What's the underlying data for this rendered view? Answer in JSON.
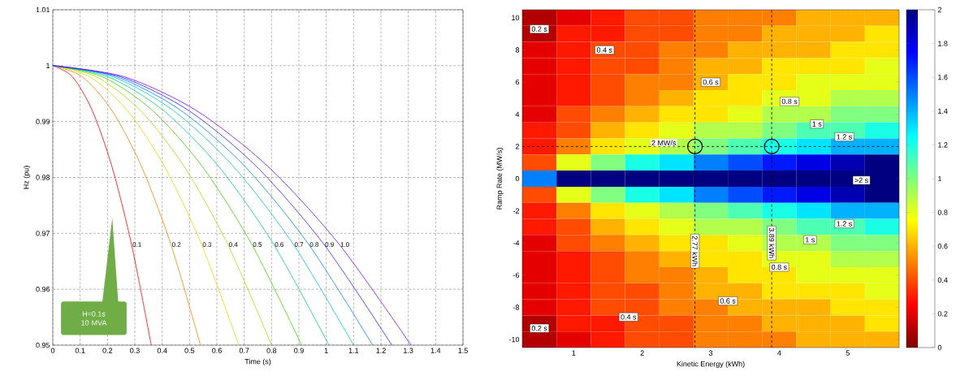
{
  "chart_data": [
    {
      "type": "line",
      "xlabel": "Time (s)",
      "ylabel": "Hz (pu)",
      "xlim": [
        0,
        1.5
      ],
      "ylim": [
        0.95,
        1.01
      ],
      "grid": true,
      "xticks": [
        0,
        0.1,
        0.2,
        0.3,
        0.4,
        0.5,
        0.6,
        0.7,
        0.8,
        0.9,
        1,
        1.1,
        1.2,
        1.3,
        1.4,
        1.5
      ],
      "yticks": [
        0.95,
        0.96,
        0.97,
        0.98,
        0.99,
        1,
        1.01
      ],
      "annotations": [
        "H=0.1s 10 MVA"
      ],
      "series": [
        {
          "name": "0.1",
          "color": "#ff0000",
          "x": [
            0,
            0.072,
            0.144,
            0.216,
            0.288,
            0.36
          ],
          "values": [
            1,
            0.998,
            0.992,
            0.982,
            0.968,
            0.95
          ]
        },
        {
          "name": "0.2",
          "color": "#ff8000",
          "x": [
            0,
            0.108,
            0.216,
            0.324,
            0.432,
            0.54
          ],
          "values": [
            1,
            0.998,
            0.992,
            0.982,
            0.968,
            0.95
          ]
        },
        {
          "name": "0.3",
          "color": "#e8d800",
          "x": [
            0,
            0.136,
            0.272,
            0.408,
            0.544,
            0.68
          ],
          "values": [
            1,
            0.998,
            0.992,
            0.982,
            0.968,
            0.95
          ]
        },
        {
          "name": "0.4",
          "color": "#a8e000",
          "x": [
            0,
            0.16,
            0.32,
            0.48,
            0.64,
            0.8
          ],
          "values": [
            1,
            0.998,
            0.992,
            0.982,
            0.968,
            0.95
          ]
        },
        {
          "name": "0.5",
          "color": "#40d000",
          "x": [
            0,
            0.182,
            0.364,
            0.546,
            0.728,
            0.91
          ],
          "values": [
            1,
            0.998,
            0.992,
            0.982,
            0.968,
            0.95
          ]
        },
        {
          "name": "0.6",
          "color": "#00d080",
          "x": [
            0,
            0.202,
            0.404,
            0.606,
            0.808,
            1.01
          ],
          "values": [
            1,
            0.998,
            0.992,
            0.982,
            0.968,
            0.95
          ]
        },
        {
          "name": "0.7",
          "color": "#00c8d0",
          "x": [
            0,
            0.22,
            0.44,
            0.66,
            0.88,
            1.1
          ],
          "values": [
            1,
            0.998,
            0.992,
            0.982,
            0.968,
            0.95
          ]
        },
        {
          "name": "0.8",
          "color": "#0080ff",
          "x": [
            0,
            0.234,
            0.468,
            0.702,
            0.936,
            1.17
          ],
          "values": [
            1,
            0.998,
            0.992,
            0.982,
            0.968,
            0.95
          ]
        },
        {
          "name": "0.9",
          "color": "#2020ff",
          "x": [
            0,
            0.248,
            0.496,
            0.744,
            0.992,
            1.24
          ],
          "values": [
            1,
            0.998,
            0.992,
            0.982,
            0.968,
            0.95
          ]
        },
        {
          "name": "1.0",
          "color": "#8000ff",
          "x": [
            0,
            0.262,
            0.524,
            0.786,
            1.048,
            1.31
          ],
          "values": [
            1,
            0.998,
            0.992,
            0.982,
            0.968,
            0.95
          ]
        }
      ]
    },
    {
      "type": "heatmap",
      "xlabel": "Kinetic Energy (kWh)",
      "ylabel": "Ramp Rate (MW/s)",
      "clim": [
        0,
        2
      ],
      "cticks": [
        0,
        0.2,
        0.4,
        0.6,
        0.8,
        1,
        1.2,
        1.4,
        1.6,
        1.8,
        2
      ],
      "categories": [
        null,
        "1",
        null,
        "2",
        null,
        "3",
        null,
        "4",
        null,
        "5",
        null
      ],
      "y_categories": [
        "10",
        null,
        "8",
        null,
        "6",
        null,
        "4",
        null,
        "2",
        null,
        "0",
        null,
        "-2",
        null,
        "-4",
        null,
        "-6",
        null,
        "-8",
        null,
        "-10"
      ],
      "cells": [
        [
          0.1,
          0.2,
          0.3,
          0.4,
          0.4,
          0.5,
          0.5,
          0.5,
          0.6,
          0.6,
          0.6
        ],
        [
          0.1,
          0.3,
          0.3,
          0.4,
          0.4,
          0.5,
          0.5,
          0.6,
          0.6,
          0.6,
          0.7
        ],
        [
          0.2,
          0.3,
          0.4,
          0.4,
          0.5,
          0.5,
          0.6,
          0.6,
          0.6,
          0.7,
          0.7
        ],
        [
          0.2,
          0.3,
          0.4,
          0.4,
          0.5,
          0.6,
          0.6,
          0.7,
          0.7,
          0.7,
          0.8
        ],
        [
          0.2,
          0.3,
          0.4,
          0.5,
          0.5,
          0.6,
          0.7,
          0.7,
          0.8,
          0.8,
          0.8
        ],
        [
          0.2,
          0.3,
          0.4,
          0.5,
          0.6,
          0.7,
          0.7,
          0.8,
          0.8,
          0.9,
          0.9
        ],
        [
          0.2,
          0.4,
          0.5,
          0.6,
          0.7,
          0.7,
          0.8,
          0.9,
          0.9,
          1.0,
          1.0
        ],
        [
          0.3,
          0.4,
          0.6,
          0.7,
          0.8,
          0.9,
          0.9,
          1.0,
          1.1,
          1.1,
          1.2
        ],
        [
          0.3,
          0.5,
          0.7,
          0.8,
          0.9,
          1.0,
          1.1,
          1.2,
          1.3,
          1.4,
          1.4
        ],
        [
          0.4,
          0.8,
          1.0,
          1.2,
          1.3,
          1.5,
          1.6,
          1.7,
          1.8,
          1.9,
          2
        ],
        [
          1.5,
          2,
          2,
          2,
          2,
          2,
          2,
          2,
          2,
          2,
          2
        ],
        [
          0.4,
          0.8,
          1.0,
          1.2,
          1.3,
          1.5,
          1.6,
          1.7,
          1.8,
          1.9,
          2
        ],
        [
          0.3,
          0.5,
          0.7,
          0.8,
          0.9,
          1.0,
          1.1,
          1.2,
          1.3,
          1.4,
          1.4
        ],
        [
          0.3,
          0.4,
          0.6,
          0.7,
          0.8,
          0.9,
          0.9,
          1.0,
          1.1,
          1.1,
          1.2
        ],
        [
          0.2,
          0.4,
          0.5,
          0.6,
          0.7,
          0.7,
          0.8,
          0.9,
          0.9,
          1.0,
          1.0
        ],
        [
          0.2,
          0.3,
          0.4,
          0.5,
          0.6,
          0.7,
          0.7,
          0.8,
          0.8,
          0.9,
          0.9
        ],
        [
          0.2,
          0.3,
          0.4,
          0.5,
          0.5,
          0.6,
          0.7,
          0.7,
          0.8,
          0.8,
          0.8
        ],
        [
          0.2,
          0.3,
          0.4,
          0.4,
          0.5,
          0.6,
          0.6,
          0.7,
          0.7,
          0.7,
          0.8
        ],
        [
          0.2,
          0.3,
          0.4,
          0.4,
          0.5,
          0.5,
          0.6,
          0.6,
          0.6,
          0.7,
          0.7
        ],
        [
          0.1,
          0.3,
          0.3,
          0.4,
          0.4,
          0.5,
          0.5,
          0.6,
          0.6,
          0.6,
          0.7
        ],
        [
          0.1,
          0.2,
          0.3,
          0.4,
          0.4,
          0.5,
          0.5,
          0.5,
          0.6,
          0.6,
          0.6
        ]
      ],
      "annotations": [
        "0.2 s",
        "0.4 s",
        "0.6 s",
        "0.8 s",
        "1 s",
        "1.2 s",
        ">2 s",
        "1.2 s",
        "1 s",
        "0.8 s",
        "0.6 s",
        "0.4 s",
        "0.2 s",
        "2.77 kWh",
        "3.89 kWh"
      ],
      "ref_lines": [
        {
          "axis": "y",
          "value": "2",
          "label": "2 MW/s",
          "line_style": "dashed",
          "color": "#000000"
        }
      ]
    }
  ]
}
